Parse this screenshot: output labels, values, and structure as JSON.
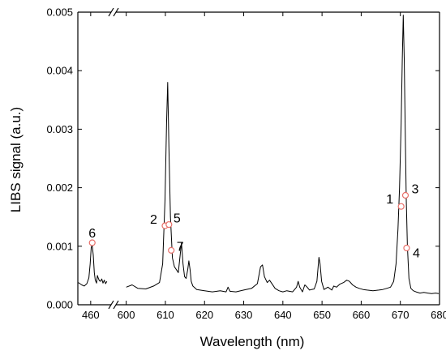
{
  "chart_data": {
    "type": "line",
    "title": "",
    "xlabel": "Wavelength (nm)",
    "ylabel": "LIBS signal (a.u.)",
    "ylim": [
      0,
      0.005
    ],
    "yticks": [
      "0.000",
      "0.001",
      "0.002",
      "0.003",
      "0.004",
      "0.005"
    ],
    "x_segments": [
      {
        "xlim": [
          455,
          467
        ],
        "ticks": [
          "460"
        ]
      },
      {
        "xlim": [
          598,
          680
        ],
        "ticks": [
          "600",
          "610",
          "620",
          "630",
          "640",
          "650",
          "660",
          "670",
          "680"
        ]
      }
    ],
    "axis_break": "//",
    "grid": false,
    "legend": "none",
    "series": [
      {
        "color": "#000000",
        "x": [
          455.2,
          456.5,
          457.5,
          458.5,
          459.3,
          459.8,
          460.2,
          460.6,
          461.0,
          461.4,
          461.8,
          462.3,
          462.6,
          463.0,
          463.4,
          463.8,
          464.3,
          464.8,
          465.3,
          465.8,
          466.3,
          600.0,
          601.5,
          603.0,
          605.0,
          607.0,
          608.5,
          609.3,
          609.9,
          610.3,
          610.6,
          610.9,
          611.3,
          611.8,
          612.3,
          612.8,
          613.3,
          613.7,
          614.1,
          614.5,
          614.9,
          615.3,
          615.7,
          616.0,
          616.3,
          616.6,
          617.0,
          618.0,
          620.0,
          622.0,
          624.0,
          625.5,
          626.0,
          626.5,
          628.0,
          630.0,
          632.0,
          633.5,
          634.3,
          634.8,
          635.3,
          636.0,
          636.6,
          637.3,
          638.0,
          639.0,
          640.0,
          641.0,
          642.5,
          643.5,
          643.9,
          644.3,
          645.0,
          645.6,
          646.2,
          646.8,
          647.3,
          648.0,
          648.7,
          649.2,
          649.5,
          649.9,
          650.5,
          651.5,
          652.5,
          653.0,
          653.7,
          654.5,
          655.5,
          656.3,
          657.0,
          657.8,
          658.7,
          659.5,
          660.5,
          661.5,
          663.0,
          664.5,
          665.5,
          666.5,
          667.5,
          668.3,
          668.9,
          669.4,
          669.8,
          670.2,
          670.5,
          670.75,
          671.0,
          671.25,
          671.5,
          671.8,
          672.2,
          672.7,
          673.3,
          674.0,
          675.0,
          676.0,
          677.0,
          678.0,
          679.0,
          679.8
        ],
        "y": [
          0.00038,
          0.00034,
          0.00032,
          0.00036,
          0.00046,
          0.0007,
          0.00098,
          0.00102,
          0.00085,
          0.00055,
          0.00042,
          0.00037,
          0.0005,
          0.00045,
          0.00041,
          0.0004,
          0.00044,
          0.00037,
          0.00042,
          0.00036,
          0.0004,
          0.0003,
          0.00034,
          0.00028,
          0.00027,
          0.00032,
          0.00038,
          0.0007,
          0.0018,
          0.0031,
          0.0038,
          0.0027,
          0.0015,
          0.0008,
          0.00065,
          0.0006,
          0.00055,
          0.0008,
          0.00106,
          0.0007,
          0.00048,
          0.00045,
          0.0006,
          0.00075,
          0.0006,
          0.0004,
          0.00032,
          0.00026,
          0.00024,
          0.00022,
          0.00024,
          0.00022,
          0.0003,
          0.00023,
          0.00022,
          0.00025,
          0.00028,
          0.00036,
          0.00065,
          0.00068,
          0.00048,
          0.00038,
          0.00042,
          0.00035,
          0.00028,
          0.00024,
          0.00022,
          0.00024,
          0.00022,
          0.0003,
          0.0004,
          0.0003,
          0.00022,
          0.00034,
          0.0003,
          0.00025,
          0.00026,
          0.00027,
          0.0004,
          0.00081,
          0.0007,
          0.0004,
          0.00026,
          0.0003,
          0.00025,
          0.00032,
          0.0003,
          0.00035,
          0.00038,
          0.00042,
          0.0004,
          0.00034,
          0.0003,
          0.00028,
          0.00026,
          0.00025,
          0.00024,
          0.00025,
          0.00026,
          0.00028,
          0.0003,
          0.0004,
          0.0007,
          0.0013,
          0.002,
          0.0031,
          0.0042,
          0.00495,
          0.0042,
          0.003,
          0.0018,
          0.001,
          0.00045,
          0.00028,
          0.00024,
          0.00022,
          0.0002,
          0.00021,
          0.0002,
          0.00019,
          0.0002,
          0.00019
        ]
      }
    ],
    "markers": [
      {
        "label": "1",
        "x": 670.2,
        "y": 0.00168
      },
      {
        "label": "2",
        "x": 609.9,
        "y": 0.00135
      },
      {
        "label": "3",
        "x": 671.3,
        "y": 0.00187
      },
      {
        "label": "4",
        "x": 671.6,
        "y": 0.00097
      },
      {
        "label": "5",
        "x": 610.9,
        "y": 0.00137
      },
      {
        "label": "6",
        "x": 460.6,
        "y": 0.00106
      },
      {
        "label": "7",
        "x": 611.5,
        "y": 0.00093
      }
    ],
    "marker_color": "#e8706a"
  }
}
